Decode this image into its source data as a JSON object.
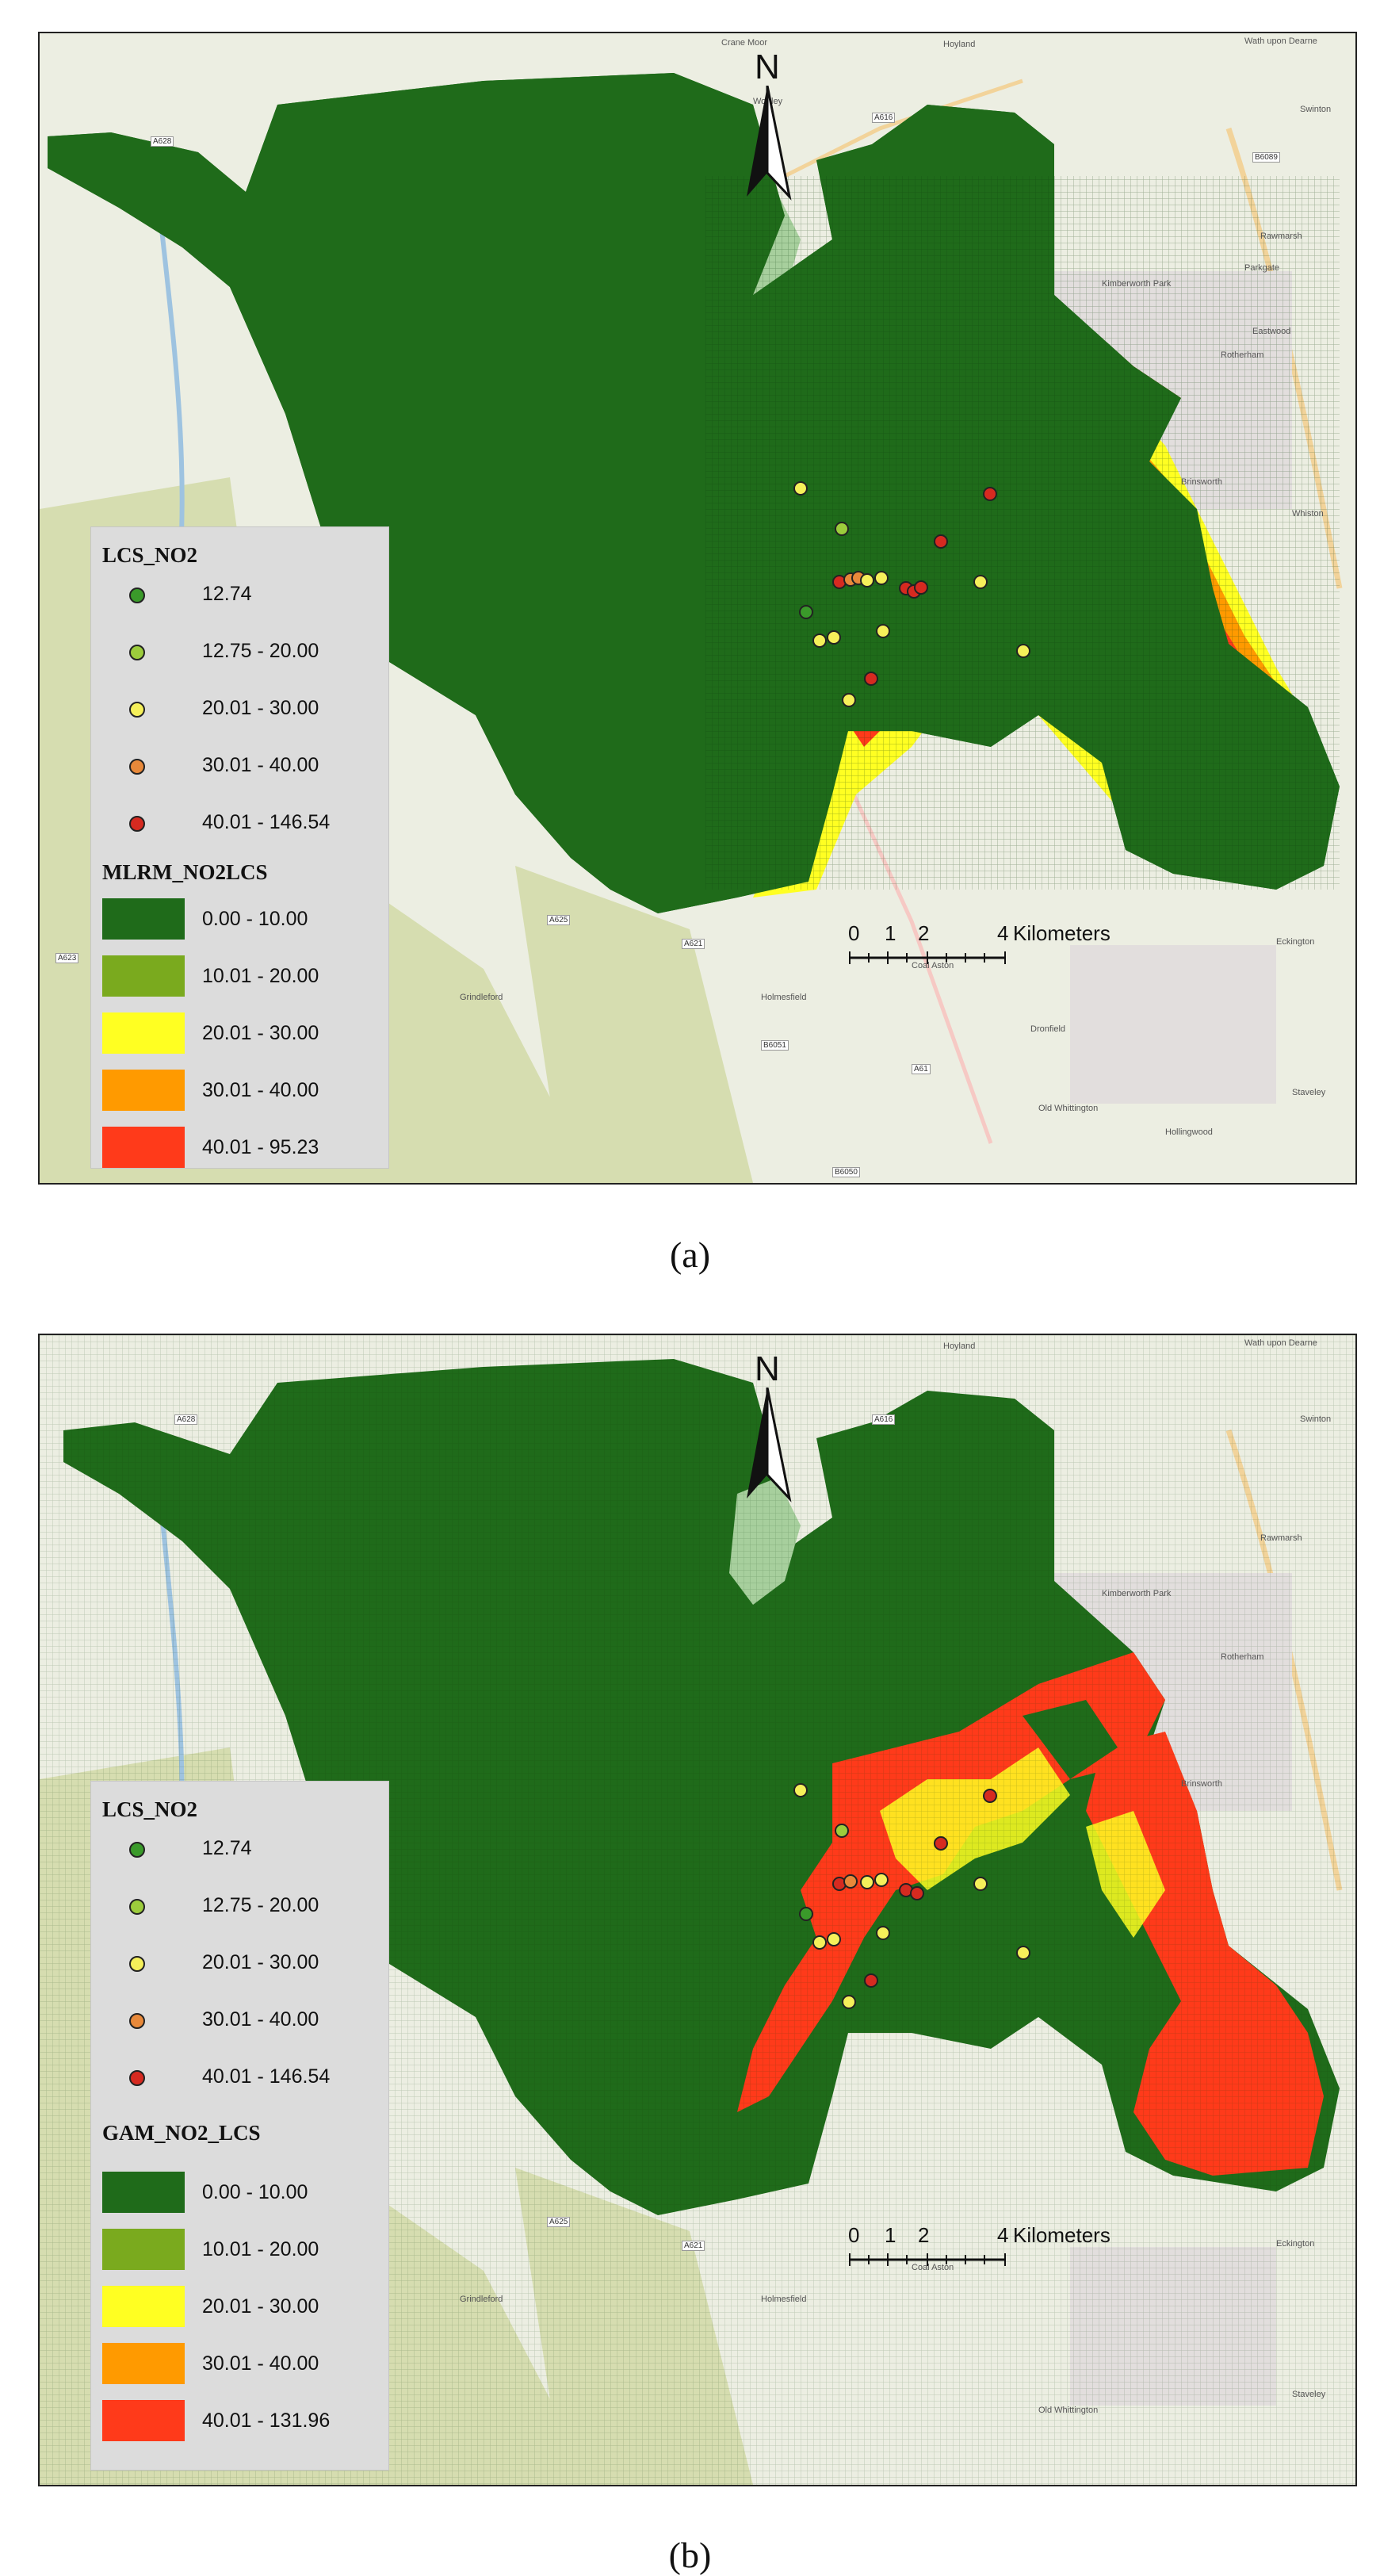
{
  "panels": [
    {
      "id": "a",
      "caption": "(a)",
      "legend_points_title": "LCS_NO2",
      "legend_points": [
        {
          "label": "12.74",
          "color": "#3a9a2a"
        },
        {
          "label": "12.75 - 20.00",
          "color": "#9ccc3c"
        },
        {
          "label": "20.01 - 30.00",
          "color": "#f5f05a"
        },
        {
          "label": "30.01 - 40.00",
          "color": "#e8893a"
        },
        {
          "label": "40.01 - 146.54",
          "color": "#d62a20"
        }
      ],
      "legend_grid_title": "MLRM_NO2LCS",
      "legend_grid": [
        {
          "label": "0.00 - 10.00",
          "color": "#1f6b1a"
        },
        {
          "label": "10.01 - 20.00",
          "color": "#7aaa1e"
        },
        {
          "label": "20.01 - 30.00",
          "color": "#ffff22"
        },
        {
          "label": "30.01 - 40.00",
          "color": "#ff9a00"
        },
        {
          "label": "40.01 - 95.23",
          "color": "#ff3a1a"
        }
      ],
      "north": "N",
      "scale": {
        "ticks": [
          "0",
          "1",
          "2",
          "4"
        ],
        "unit": "Kilometers"
      }
    },
    {
      "id": "b",
      "caption": "(b)",
      "legend_points_title": "LCS_NO2",
      "legend_points": [
        {
          "label": "12.74",
          "color": "#3a9a2a"
        },
        {
          "label": "12.75 - 20.00",
          "color": "#9ccc3c"
        },
        {
          "label": "20.01 - 30.00",
          "color": "#f5f05a"
        },
        {
          "label": "30.01 - 40.00",
          "color": "#e8893a"
        },
        {
          "label": "40.01 - 146.54",
          "color": "#d62a20"
        }
      ],
      "legend_grid_title": "GAM_NO2_LCS",
      "legend_grid": [
        {
          "label": "0.00 - 10.00",
          "color": "#1f6b1a"
        },
        {
          "label": "10.01 - 20.00",
          "color": "#7aaa1e"
        },
        {
          "label": "20.01 - 30.00",
          "color": "#ffff22"
        },
        {
          "label": "30.01 - 40.00",
          "color": "#ff9a00"
        },
        {
          "label": "40.01 - 131.96",
          "color": "#ff3a1a"
        }
      ],
      "north": "N",
      "scale": {
        "ticks": [
          "0",
          "1",
          "2",
          "4"
        ],
        "unit": "Kilometers"
      }
    }
  ],
  "basemap_labels": [
    "Hoyland",
    "Wath upon Dearne",
    "Swinton",
    "Rawmarsh",
    "Rotherham",
    "Kimberworth Park",
    "Parkgate",
    "Eastwood",
    "Eckington",
    "Staveley",
    "Old Whittington",
    "Coal Aston",
    "Dronfield",
    "Grindleford",
    "Holmesfield",
    "Hollingwood",
    "Brinsworth",
    "Whiston",
    "Crane Moor",
    "Wortley"
  ],
  "road_labels": [
    "A628",
    "A616",
    "A625",
    "A621",
    "A623",
    "A61",
    "B6051",
    "B6089",
    "B6050"
  ]
}
